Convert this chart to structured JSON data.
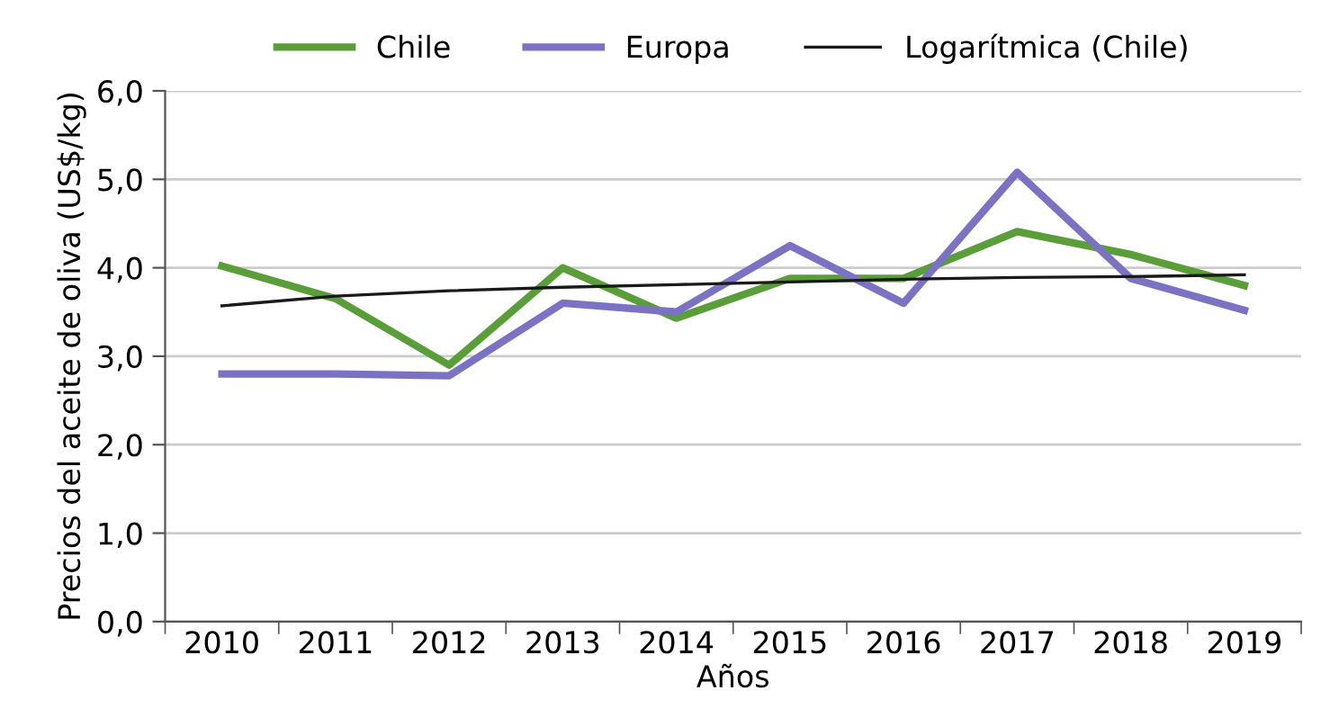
{
  "chart_data": {
    "type": "line",
    "categories": [
      "2010",
      "2011",
      "2012",
      "2013",
      "2014",
      "2015",
      "2016",
      "2017",
      "2018",
      "2019"
    ],
    "series": [
      {
        "name": "Chile",
        "color": "#5a9e3a",
        "values": [
          4.02,
          3.65,
          2.9,
          4.0,
          3.43,
          3.88,
          3.88,
          4.41,
          4.15,
          3.8
        ]
      },
      {
        "name": "Europa",
        "color": "#7b72c4",
        "values": [
          2.8,
          2.8,
          2.78,
          3.6,
          3.5,
          4.25,
          3.6,
          5.08,
          3.88,
          3.52
        ]
      },
      {
        "name": "Logarítmica (Chile)",
        "color": "#1a1a1a",
        "values": [
          3.57,
          3.68,
          3.74,
          3.78,
          3.81,
          3.84,
          3.87,
          3.89,
          3.9,
          3.92
        ]
      }
    ],
    "xlabel": "Años",
    "ylabel": "Precios del aceite de oliva (US$/kg)",
    "ylim": [
      0,
      6
    ],
    "yticks": [
      {
        "value": 0,
        "label": "0,0"
      },
      {
        "value": 1,
        "label": "1,0"
      },
      {
        "value": 2,
        "label": "2,0"
      },
      {
        "value": 3,
        "label": "3,0"
      },
      {
        "value": 4,
        "label": "4,0"
      },
      {
        "value": 5,
        "label": "5,0"
      },
      {
        "value": 6,
        "label": "6,0"
      }
    ],
    "grid": "y",
    "legend": "top",
    "marker": "none",
    "line_style": "solid"
  }
}
